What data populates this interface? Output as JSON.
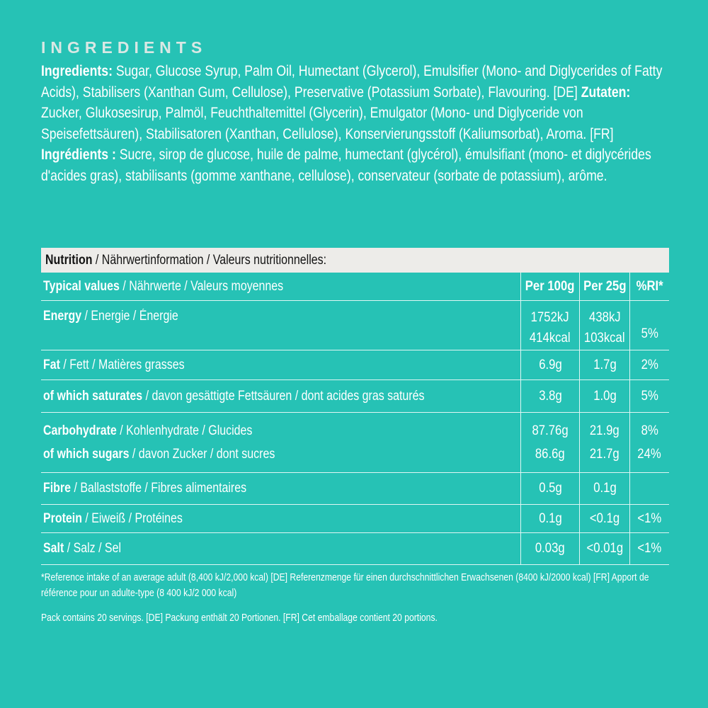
{
  "page": {
    "title": "INGREDIENTS",
    "bg_color": "#26c2b5",
    "accent_bar_color": "#edece9",
    "text_color": "#ffffff"
  },
  "ingredients": {
    "en_label": "Ingredients:",
    "en_text": " Sugar, Glucose Syrup, Palm Oil, Humectant (Glycerol), Emulsifier (Mono- and Diglycerides of Fatty Acids), Stabilisers (Xanthan Gum, Cellulose), Preservative (Potassium Sorbate), Flavouring. [DE] ",
    "de_label": "Zutaten:",
    "de_text": " Zucker, Glukosesirup, Palmöl, Feuchthaltemittel (Glycerin), Emulgator (Mono- und Diglyceride von Speisefettsäuren), Stabilisatoren (Xanthan, Cellulose), Konservierungsstoff (Kaliumsorbat), Aroma. [FR] ",
    "fr_label": "Ingrédients :",
    "fr_text": " Sucre, sirop de glucose, huile de palme, humectant (glycérol), émulsifiant (mono- et diglycérides d'acides gras), stabilisants (gomme xanthane, cellulose), conservateur (sorbate de potassium), arôme."
  },
  "nutrition": {
    "header_bold": "Nutrition",
    "header_rest": " / Nährwertinformation / Valeurs nutritionnelles:",
    "columns": {
      "label_bold": "Typical values",
      "label_rest": " / Nährwerte / Valeurs moyennes",
      "per100": "Per 100g",
      "per25": "Per 25g",
      "ri": "%RI*"
    },
    "rows": {
      "energy": {
        "bold": "Energy",
        "rest": " / Energie / Énergie",
        "per100_kj": "1752kJ",
        "per100_kcal": "414kcal",
        "per25_kj": "438kJ",
        "per25_kcal": "103kcal",
        "ri": "5%"
      },
      "fat": {
        "bold": "Fat",
        "rest": " / Fett / Matières grasses",
        "per100": "6.9g",
        "per25": "1.7g",
        "ri": "2%"
      },
      "saturates": {
        "bold": "of which saturates",
        "rest": " / davon gesättigte Fettsäuren / dont acides gras saturés",
        "per100": "3.8g",
        "per25": "1.0g",
        "ri": "5%"
      },
      "carbohydrate": {
        "bold": "Carbohydrate",
        "rest": " / Kohlenhydrate / Glucides",
        "per100": "87.76g",
        "per25": "21.9g",
        "ri": "8%"
      },
      "sugars": {
        "bold": "of which sugars",
        "rest": " / davon Zucker / dont sucres",
        "per100": "86.6g",
        "per25": "21.7g",
        "ri": "24%"
      },
      "fibre": {
        "bold": "Fibre",
        "rest": " / Ballaststoffe / Fibres alimentaires",
        "per100": "0.5g",
        "per25": "0.1g",
        "ri": ""
      },
      "protein": {
        "bold": "Protein",
        "rest": " / Eiweiß / Protéines",
        "per100": "0.1g",
        "per25": "<0.1g",
        "ri": "<1%"
      },
      "salt": {
        "bold": "Salt",
        "rest": " / Salz / Sel",
        "per100": "0.03g",
        "per25": "<0.01g",
        "ri": "<1%"
      }
    }
  },
  "footnotes": {
    "reference": "*Reference intake of an average adult (8,400 kJ/2,000 kcal) [DE] Referenzmenge für einen durchschnittlichen Erwachsenen (8400 kJ/2000 kcal) [FR] Apport de référence pour un adulte-type (8 400 kJ/2 000 kcal)",
    "servings": "Pack contains 20 servings. [DE] Packung enthält 20 Portionen. [FR] Cet emballage contient 20 portions."
  }
}
